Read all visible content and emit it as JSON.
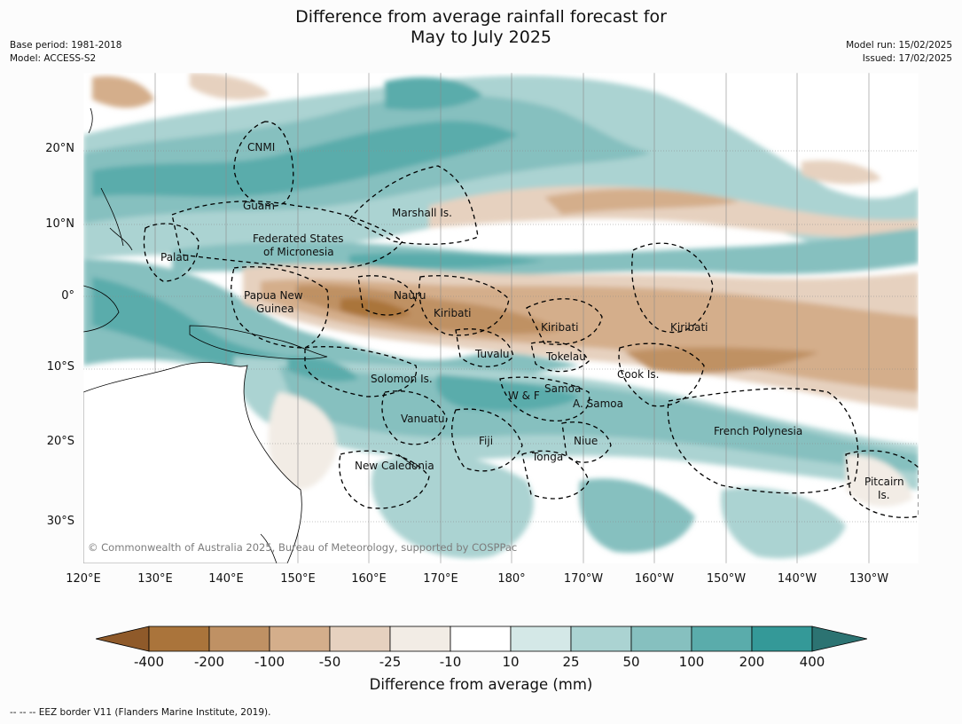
{
  "title": {
    "line1": "Difference from average rainfall forecast for",
    "line2": "May to July 2025"
  },
  "meta": {
    "base_period": "Base period: 1981-2018",
    "model": "Model: ACCESS-S2",
    "model_run": "Model run: 15/02/2025",
    "issued": "Issued: 17/02/2025"
  },
  "map": {
    "lat_labels": [
      "20°N",
      "10°N",
      "0°",
      "10°S",
      "20°S",
      "30°S"
    ],
    "lon_labels": [
      "120°E",
      "130°E",
      "140°E",
      "150°E",
      "160°E",
      "170°E",
      "180°",
      "170°W",
      "160°W",
      "150°W",
      "140°W",
      "130°W"
    ],
    "copyright": "© Commonwealth of Australia 2025, Bureau of Meteorology, supported by COSPPac",
    "places": {
      "cnmi": "CNMI",
      "guam": "Guam",
      "marshall": "Marshall Is.",
      "fsm_1": "Federated States",
      "fsm_2": "of Micronesia",
      "palau": "Palau",
      "png_1": "Papua New",
      "png_2": "Guinea",
      "nauru": "Nauru",
      "kiribati_w": "Kiribati",
      "kiribati_c": "Kiribati",
      "kiribati_e": "Kiribati",
      "tuvalu": "Tuvalu",
      "tokelau": "Tokelau",
      "cook": "Cook Is.",
      "solomon": "Solomon Is.",
      "samoa": "Samoa",
      "wf": "W & F",
      "asamoa": "A. Samoa",
      "vanuatu": "Vanuatu",
      "fiji": "Fiji",
      "niue": "Niue",
      "tonga": "Tonga",
      "newcal": "New Caledonia",
      "frpoly": "French Polynesia",
      "pitcairn_1": "Pitcairn",
      "pitcairn_2": "Is."
    },
    "colors": {
      "land_outline": "#000000",
      "eez": "#000000",
      "grid": "#8a8a8a"
    }
  },
  "colorbar": {
    "labels": [
      "-400",
      "-200",
      "-100",
      "-50",
      "-25",
      "-10",
      "10",
      "25",
      "50",
      "100",
      "200",
      "400"
    ],
    "colors": [
      "#8f5a2a",
      "#aa743b",
      "#bf9164",
      "#d4ae8b",
      "#e6d1bf",
      "#f2ece5",
      "#ffffff",
      "#d4e8e7",
      "#abd3d2",
      "#86c0bf",
      "#5aacab",
      "#349998",
      "#2c7372"
    ],
    "title": "Difference from average (mm)"
  },
  "footer": "--  --  -- EEZ border V11 (Flanders Marine Institute, 2019)."
}
